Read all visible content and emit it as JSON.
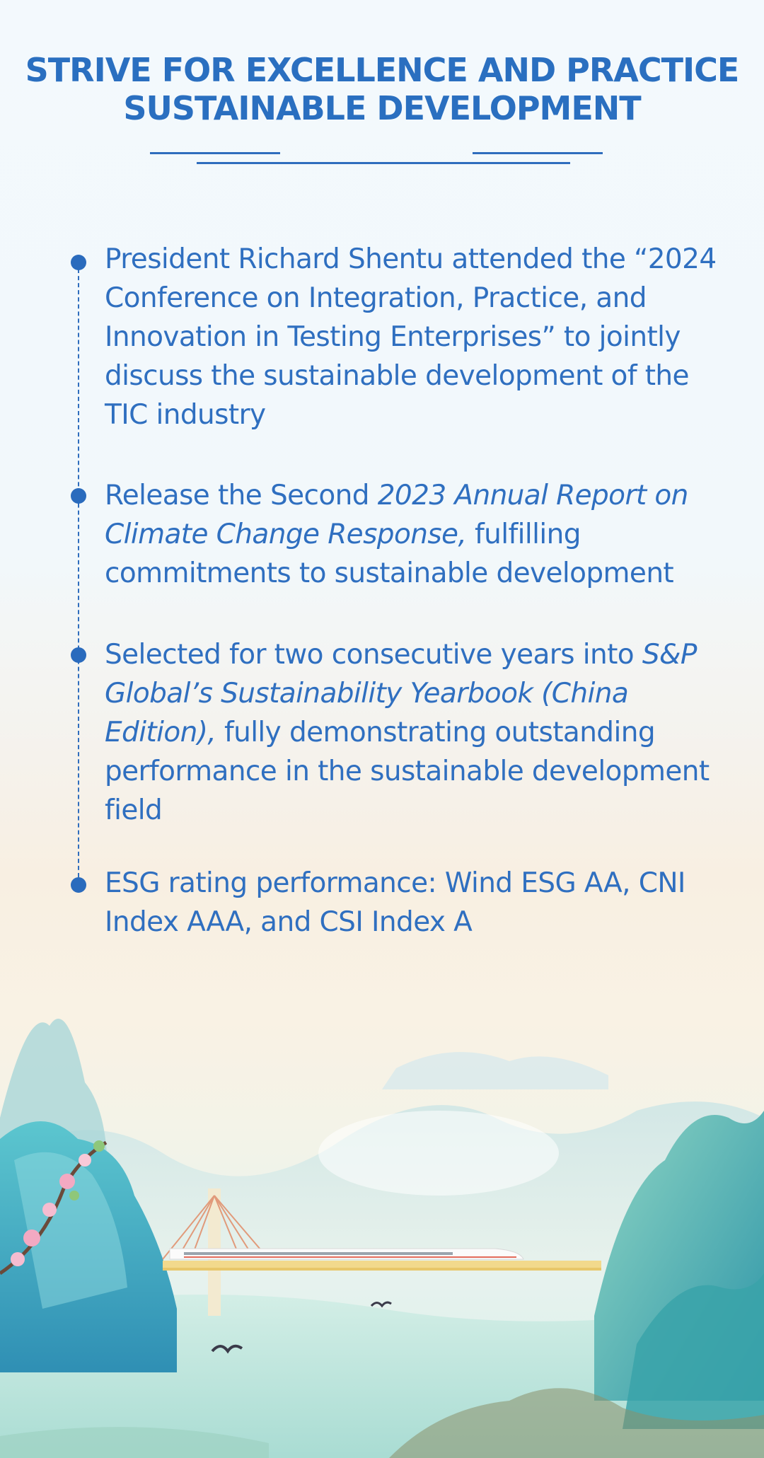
{
  "header": {
    "title_line1": "STRIVE FOR EXCELLENCE AND PRACTICE",
    "title_line2": "SUSTAINABLE DEVELOPMENT"
  },
  "items": [
    {
      "text": "President Richard Shentu attended the “2024 Conference on Integration, Practice, and Innovation in Testing Enterprises”  to jointly discuss the sustainable development of the TIC industry"
    },
    {
      "pre": "Release the Second ",
      "italic": "2023 Annual Report on Climate Change Response,",
      "post": " fulfilling commitments to sustainable development"
    },
    {
      "pre": "Selected for two consecutive years into ",
      "italic": "S&P Global’s Sustainability Yearbook (China Edition),",
      "post": " fully demonstrating outstanding performance in the sustainable development field"
    },
    {
      "text": "ESG rating performance: Wind ESG AA, CNI Index AAA, and CSI Index A"
    }
  ],
  "colors": {
    "accent": "#2a6fc0",
    "mountain_teal": "#4fb8c2",
    "water": "#bfe6e1"
  }
}
